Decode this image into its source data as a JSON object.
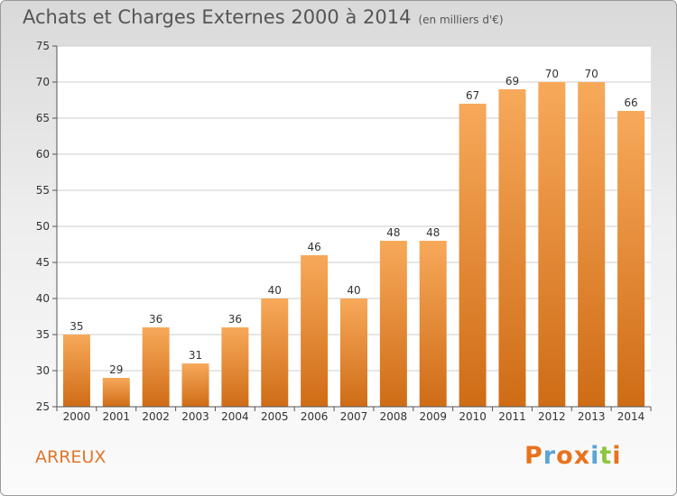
{
  "chart_data": {
    "type": "bar",
    "title": "Achats et Charges Externes 2000 à 2014",
    "unit": "(en milliers d'€)",
    "categories": [
      "2000",
      "2001",
      "2002",
      "2003",
      "2004",
      "2005",
      "2006",
      "2007",
      "2008",
      "2009",
      "2010",
      "2011",
      "2012",
      "2013",
      "2014"
    ],
    "values": [
      35,
      29,
      36,
      31,
      36,
      40,
      46,
      40,
      48,
      48,
      67,
      69,
      70,
      70,
      66
    ],
    "ylim": [
      25,
      75
    ],
    "yticks": [
      25,
      30,
      35,
      40,
      45,
      50,
      55,
      60,
      65,
      70,
      75
    ],
    "grid": true,
    "colors": {
      "bar_light": "#f7a95a",
      "bar_dark": "#cf6c16",
      "grid": "#cccccc",
      "axis_text": "#333333"
    }
  },
  "footer": {
    "location": "ARREUX",
    "brand": "Proxiti",
    "brand_colors": [
      "#e8731c",
      "#5aa5d8",
      "#e8731c",
      "#e8731c",
      "#5aa5d8",
      "#8cc63e",
      "#e8731c"
    ]
  }
}
